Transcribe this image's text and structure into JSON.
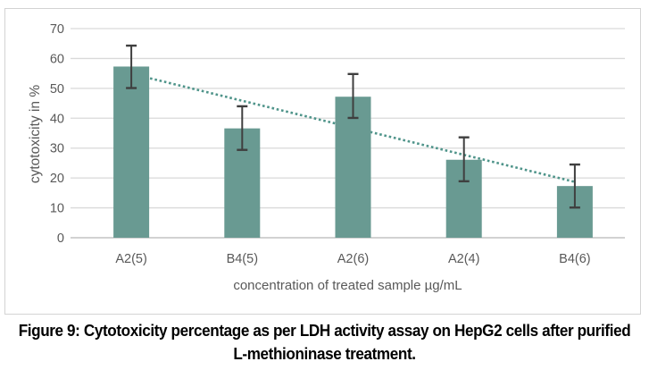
{
  "chart_data": {
    "type": "bar",
    "title": "",
    "categories": [
      "A2(5)",
      "B4(5)",
      "A2(6)",
      "A2(4)",
      "B4(6)"
    ],
    "values": [
      57.3,
      36.6,
      47.2,
      26.1,
      17.3
    ],
    "error_high": [
      7.0,
      7.4,
      7.6,
      7.5,
      7.2
    ],
    "error_low": [
      7.2,
      7.2,
      7.1,
      7.2,
      7.2
    ],
    "trendline": {
      "type": "linear-dotted",
      "start_value": 54.9,
      "end_value": 18.7
    },
    "xlabel": "concentration of treated sample µg/mL",
    "ylabel": "cytotoxicity in %",
    "ylim": [
      0,
      70
    ],
    "yticks": [
      0,
      10,
      20,
      30,
      40,
      50,
      60,
      70
    ],
    "grid": true,
    "legend": "none",
    "colors": {
      "bar": "#699a92",
      "trendline": "#4f948a",
      "error_bar": "#3f3f3f",
      "gridline": "#d9d9d9",
      "axis_line": "#c3c3c3",
      "axis_text": "#595959",
      "plot_border": "#d3d3d3"
    }
  },
  "caption": {
    "line1": "Figure 9: Cytotoxicity percentage as per LDH activity assay on HepG2 cells after purified",
    "line2": "L-methioninase treatment."
  }
}
